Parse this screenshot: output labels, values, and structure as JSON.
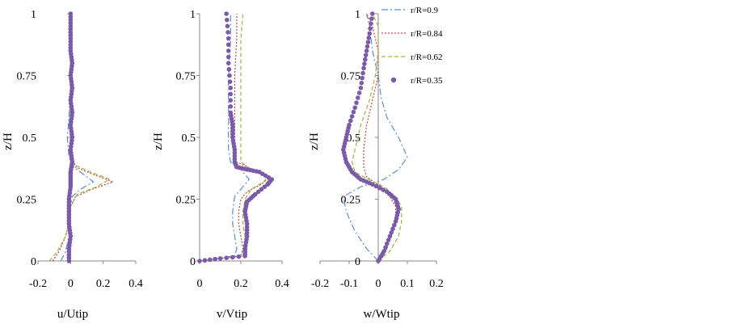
{
  "legend": [
    {
      "label": "r/R=0.9",
      "color": "#5b8fd0",
      "dash": "8,3,2,3"
    },
    {
      "label": "r/R=0.84",
      "color": "#d04040",
      "dash": "2,2"
    },
    {
      "label": "r/R=0.62",
      "color": "#9ab83a",
      "dash": "5,3"
    },
    {
      "label": "r/R=0.35",
      "color": "#7b5ba8",
      "dash": "dots"
    }
  ],
  "chart_data": [
    {
      "type": "line",
      "xlabel": "u/Utip",
      "ylabel": "z/H",
      "xlim": [
        -0.2,
        0.4
      ],
      "ylim": [
        0,
        1
      ],
      "xticks": [
        "-0.2",
        "0",
        "0.2",
        "0.4"
      ],
      "yticks": [
        "0",
        "0.25",
        "0.5",
        "0.75",
        "1"
      ],
      "series": [
        {
          "name": "r/R=0.9",
          "points": [
            [
              -0.06,
              0
            ],
            [
              -0.03,
              0.04
            ],
            [
              -0.01,
              0.1
            ],
            [
              0.0,
              0.18
            ],
            [
              0.0,
              0.22
            ],
            [
              0.01,
              0.26
            ],
            [
              0.06,
              0.29
            ],
            [
              0.14,
              0.32
            ],
            [
              0.08,
              0.35
            ],
            [
              0.02,
              0.38
            ],
            [
              -0.01,
              0.42
            ],
            [
              -0.02,
              0.5
            ],
            [
              -0.01,
              0.58
            ],
            [
              0.0,
              0.7
            ],
            [
              0.0,
              0.85
            ],
            [
              0.0,
              1.0
            ]
          ]
        },
        {
          "name": "r/R=0.84",
          "points": [
            [
              -0.11,
              0
            ],
            [
              -0.07,
              0.04
            ],
            [
              -0.03,
              0.1
            ],
            [
              -0.01,
              0.16
            ],
            [
              0.0,
              0.22
            ],
            [
              0.03,
              0.26
            ],
            [
              0.13,
              0.29
            ],
            [
              0.26,
              0.32
            ],
            [
              0.14,
              0.35
            ],
            [
              0.03,
              0.38
            ],
            [
              0.0,
              0.45
            ],
            [
              0.0,
              0.6
            ],
            [
              0.0,
              0.8
            ],
            [
              0.0,
              1.0
            ]
          ]
        },
        {
          "name": "r/R=0.62",
          "points": [
            [
              -0.13,
              0
            ],
            [
              -0.08,
              0.04
            ],
            [
              -0.03,
              0.1
            ],
            [
              -0.01,
              0.16
            ],
            [
              0.0,
              0.22
            ],
            [
              0.04,
              0.27
            ],
            [
              0.16,
              0.3
            ],
            [
              0.24,
              0.33
            ],
            [
              0.12,
              0.36
            ],
            [
              0.02,
              0.39
            ],
            [
              0.0,
              0.45
            ],
            [
              0.0,
              0.6
            ],
            [
              0.0,
              0.8
            ],
            [
              0.0,
              1.0
            ]
          ]
        },
        {
          "name": "r/R=0.35",
          "points": [
            [
              -0.01,
              0
            ],
            [
              -0.01,
              0.05
            ],
            [
              0.0,
              0.1
            ],
            [
              -0.01,
              0.15
            ],
            [
              -0.01,
              0.2
            ],
            [
              -0.01,
              0.25
            ],
            [
              0.0,
              0.3
            ],
            [
              0.0,
              0.33
            ],
            [
              0.0,
              0.36
            ],
            [
              0.01,
              0.4
            ],
            [
              0.0,
              0.45
            ],
            [
              0.01,
              0.5
            ],
            [
              0.0,
              0.55
            ],
            [
              0.01,
              0.6
            ],
            [
              0.0,
              0.65
            ],
            [
              0.01,
              0.7
            ],
            [
              0.0,
              0.75
            ],
            [
              0.01,
              0.8
            ],
            [
              0.0,
              0.85
            ],
            [
              0.0,
              0.9
            ],
            [
              0.0,
              0.95
            ],
            [
              0.0,
              1.0
            ]
          ]
        }
      ]
    },
    {
      "type": "line",
      "xlabel": "v/Vtip",
      "ylabel": "z/H",
      "xlim": [
        0,
        0.4
      ],
      "ylim": [
        0,
        1
      ],
      "xticks": [
        "0",
        "0.2",
        "0.4"
      ],
      "yticks": [
        "0",
        "0.25",
        "0.5",
        "0.75",
        "1"
      ],
      "series": [
        {
          "name": "r/R=0.9",
          "points": [
            [
              0.0,
              0
            ],
            [
              0.08,
              0.01
            ],
            [
              0.17,
              0.02
            ],
            [
              0.18,
              0.05
            ],
            [
              0.17,
              0.1
            ],
            [
              0.16,
              0.15
            ],
            [
              0.16,
              0.2
            ],
            [
              0.17,
              0.26
            ],
            [
              0.2,
              0.29
            ],
            [
              0.24,
              0.33
            ],
            [
              0.2,
              0.37
            ],
            [
              0.15,
              0.4
            ],
            [
              0.14,
              0.45
            ],
            [
              0.14,
              0.5
            ],
            [
              0.14,
              0.6
            ],
            [
              0.14,
              0.75
            ],
            [
              0.15,
              0.9
            ],
            [
              0.15,
              1.0
            ]
          ]
        },
        {
          "name": "r/R=0.84",
          "points": [
            [
              0.0,
              0
            ],
            [
              0.1,
              0.01
            ],
            [
              0.2,
              0.02
            ],
            [
              0.21,
              0.05
            ],
            [
              0.2,
              0.1
            ],
            [
              0.19,
              0.15
            ],
            [
              0.19,
              0.2
            ],
            [
              0.2,
              0.25
            ],
            [
              0.23,
              0.28
            ],
            [
              0.3,
              0.31
            ],
            [
              0.34,
              0.34
            ],
            [
              0.26,
              0.37
            ],
            [
              0.18,
              0.4
            ],
            [
              0.17,
              0.45
            ],
            [
              0.17,
              0.5
            ],
            [
              0.17,
              0.6
            ],
            [
              0.17,
              0.75
            ],
            [
              0.18,
              0.9
            ],
            [
              0.18,
              1.0
            ]
          ]
        },
        {
          "name": "r/R=0.62",
          "points": [
            [
              0.0,
              0
            ],
            [
              0.12,
              0.01
            ],
            [
              0.22,
              0.02
            ],
            [
              0.23,
              0.05
            ],
            [
              0.22,
              0.1
            ],
            [
              0.21,
              0.15
            ],
            [
              0.21,
              0.2
            ],
            [
              0.22,
              0.25
            ],
            [
              0.25,
              0.29
            ],
            [
              0.31,
              0.32
            ],
            [
              0.33,
              0.34
            ],
            [
              0.25,
              0.37
            ],
            [
              0.2,
              0.4
            ],
            [
              0.2,
              0.45
            ],
            [
              0.2,
              0.5
            ],
            [
              0.2,
              0.6
            ],
            [
              0.2,
              0.75
            ],
            [
              0.2,
              0.9
            ],
            [
              0.21,
              1.0
            ]
          ]
        },
        {
          "name": "r/R=0.35",
          "points": [
            [
              0.0,
              0
            ],
            [
              0.1,
              0.01
            ],
            [
              0.22,
              0.02
            ],
            [
              0.22,
              0.05
            ],
            [
              0.23,
              0.1
            ],
            [
              0.23,
              0.15
            ],
            [
              0.22,
              0.2
            ],
            [
              0.23,
              0.24
            ],
            [
              0.27,
              0.27
            ],
            [
              0.33,
              0.31
            ],
            [
              0.35,
              0.33
            ],
            [
              0.29,
              0.36
            ],
            [
              0.23,
              0.37
            ],
            [
              0.18,
              0.38
            ],
            [
              0.17,
              0.4
            ],
            [
              0.17,
              0.45
            ],
            [
              0.16,
              0.5
            ],
            [
              0.16,
              0.55
            ],
            [
              0.15,
              0.6
            ],
            [
              0.15,
              0.7
            ],
            [
              0.14,
              0.8
            ],
            [
              0.14,
              0.9
            ],
            [
              0.13,
              1.0
            ]
          ]
        }
      ]
    },
    {
      "type": "line",
      "xlabel": "w/Wtip",
      "ylabel": "z/H",
      "xlim": [
        -0.2,
        0.2
      ],
      "ylim": [
        0,
        1
      ],
      "xticks": [
        "-0.2",
        "-0.1",
        "0",
        "0.1",
        "0.2"
      ],
      "yticks": [
        "0",
        "0.25",
        "0.5",
        "0.75",
        "1"
      ],
      "series": [
        {
          "name": "r/R=0.9",
          "points": [
            [
              0.0,
              0
            ],
            [
              -0.04,
              0.05
            ],
            [
              -0.08,
              0.12
            ],
            [
              -0.11,
              0.2
            ],
            [
              -0.12,
              0.26
            ],
            [
              -0.06,
              0.3
            ],
            [
              0.02,
              0.33
            ],
            [
              0.07,
              0.37
            ],
            [
              0.1,
              0.42
            ],
            [
              0.07,
              0.5
            ],
            [
              0.03,
              0.58
            ],
            [
              0.01,
              0.66
            ],
            [
              0.0,
              0.75
            ],
            [
              -0.02,
              0.85
            ],
            [
              -0.03,
              0.95
            ],
            [
              -0.04,
              1.0
            ]
          ]
        },
        {
          "name": "r/R=0.84",
          "points": [
            [
              0.0,
              0
            ],
            [
              0.03,
              0.05
            ],
            [
              0.05,
              0.12
            ],
            [
              0.06,
              0.18
            ],
            [
              0.06,
              0.22
            ],
            [
              0.04,
              0.26
            ],
            [
              0.01,
              0.3
            ],
            [
              -0.04,
              0.34
            ],
            [
              -0.05,
              0.38
            ],
            [
              -0.05,
              0.45
            ],
            [
              -0.04,
              0.55
            ],
            [
              -0.02,
              0.65
            ],
            [
              0.0,
              0.75
            ],
            [
              0.0,
              0.85
            ],
            [
              -0.02,
              0.95
            ],
            [
              -0.04,
              1.0
            ]
          ]
        },
        {
          "name": "r/R=0.62",
          "points": [
            [
              0.0,
              0
            ],
            [
              0.04,
              0.04
            ],
            [
              0.07,
              0.1
            ],
            [
              0.08,
              0.16
            ],
            [
              0.08,
              0.22
            ],
            [
              0.06,
              0.26
            ],
            [
              0.02,
              0.3
            ],
            [
              -0.05,
              0.34
            ],
            [
              -0.08,
              0.36
            ],
            [
              -0.09,
              0.4
            ],
            [
              -0.08,
              0.45
            ],
            [
              -0.06,
              0.55
            ],
            [
              -0.03,
              0.65
            ],
            [
              -0.01,
              0.75
            ],
            [
              0.0,
              0.85
            ],
            [
              0.0,
              0.95
            ],
            [
              -0.02,
              1.0
            ]
          ]
        },
        {
          "name": "r/R=0.35",
          "points": [
            [
              0.0,
              0
            ],
            [
              0.02,
              0.04
            ],
            [
              0.04,
              0.1
            ],
            [
              0.06,
              0.16
            ],
            [
              0.07,
              0.21
            ],
            [
              0.06,
              0.25
            ],
            [
              0.03,
              0.28
            ],
            [
              -0.02,
              0.31
            ],
            [
              -0.06,
              0.33
            ],
            [
              -0.09,
              0.36
            ],
            [
              -0.11,
              0.4
            ],
            [
              -0.12,
              0.45
            ],
            [
              -0.11,
              0.5
            ],
            [
              -0.1,
              0.55
            ],
            [
              -0.08,
              0.62
            ],
            [
              -0.06,
              0.7
            ],
            [
              -0.05,
              0.78
            ],
            [
              -0.04,
              0.85
            ],
            [
              -0.03,
              0.92
            ],
            [
              -0.02,
              1.0
            ]
          ]
        }
      ]
    }
  ]
}
